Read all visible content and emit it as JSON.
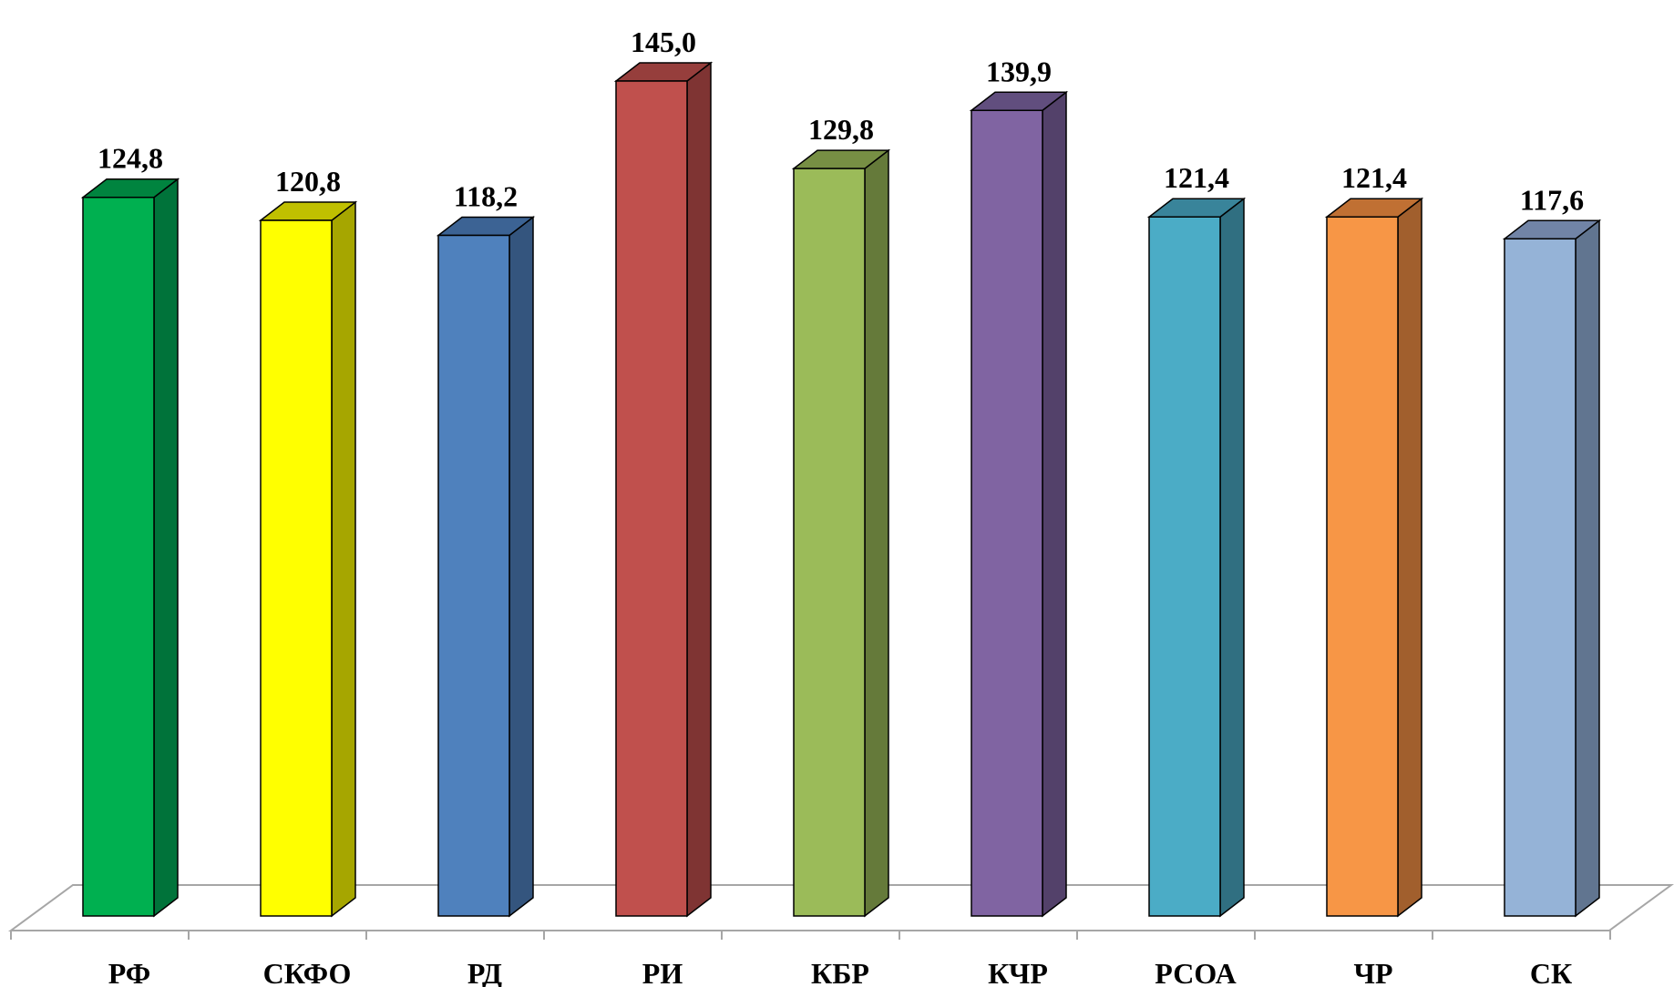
{
  "chart_data": {
    "type": "bar",
    "style": "3d-column",
    "categories": [
      "РФ",
      "СКФО",
      "РД",
      "РИ",
      "КБР",
      "КЧР",
      "РСОА",
      "ЧР",
      "СК"
    ],
    "values": [
      124.8,
      120.8,
      118.2,
      145.0,
      129.8,
      139.9,
      121.4,
      121.4,
      117.6
    ],
    "value_labels": [
      "124,8",
      "120,8",
      "118,2",
      "145,0",
      "129,8",
      "139,9",
      "121,4",
      "121,4",
      "117,6"
    ],
    "colors": [
      "#00b050",
      "#ffff00",
      "#4f81bd",
      "#c0504d",
      "#9bbb59",
      "#8064a2",
      "#4bacc6",
      "#f79646",
      "#95b3d7"
    ],
    "side_colors": [
      "#00733a",
      "#a6a600",
      "#34557e",
      "#7f3433",
      "#657a3a",
      "#53416a",
      "#306f81",
      "#a15f2d",
      "#617590"
    ],
    "top_colors": [
      "#00843f",
      "#c0c000",
      "#3c6394",
      "#963e3c",
      "#778f44",
      "#614e7e",
      "#39849a",
      "#c07033",
      "#7184a6"
    ],
    "ylim": [
      0,
      145
    ],
    "grid": false,
    "legend": "none",
    "title": "",
    "xlabel": "",
    "ylabel": ""
  }
}
